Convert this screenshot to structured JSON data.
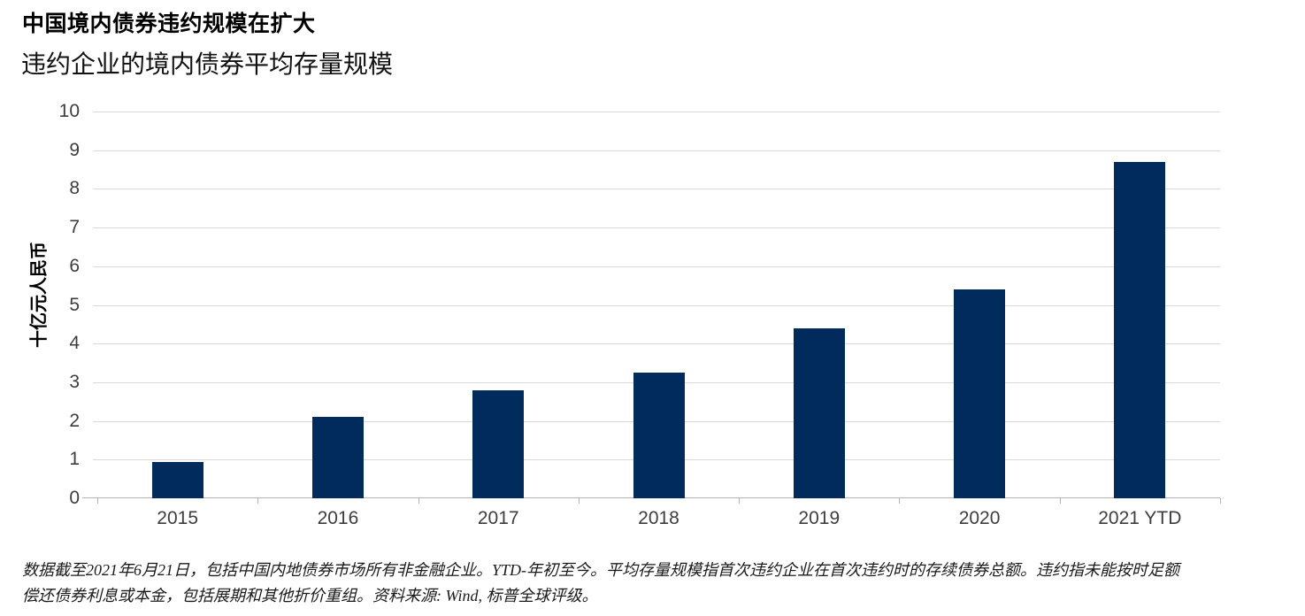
{
  "header": {
    "title": "中国境内债券违约规模在扩大",
    "subtitle": "违约企业的境内债券平均存量规模"
  },
  "chart_data": {
    "type": "bar",
    "title": "中国境内债券违约规模在扩大",
    "subtitle": "违约企业的境内债券平均存量规模",
    "categories": [
      "2015",
      "2016",
      "2017",
      "2018",
      "2019",
      "2020",
      "2021 YTD"
    ],
    "values": [
      0.95,
      2.1,
      2.8,
      3.25,
      4.4,
      5.4,
      8.7
    ],
    "xlabel": "",
    "ylabel": "十亿元人民币",
    "ylim": [
      0,
      10
    ],
    "ytick_step": 1,
    "yticks": [
      0,
      1,
      2,
      3,
      4,
      5,
      6,
      7,
      8,
      9,
      10
    ],
    "grid": true,
    "legend_position": "none",
    "bar_color": "#002b5c"
  },
  "colors": {
    "bar": "#002b5c",
    "gridline": "#d9d9d9",
    "axis": "#b3b3b3",
    "tick_text": "#3d3d3d"
  },
  "footnote": {
    "line1": "数据截至2021年6月21日，包括中国内地债券市场所有非金融企业。YTD-年初至今。平均存量规模指首次违约企业在首次违约时的存续债券总额。违约指未能按时足额",
    "line2": "偿还债券利息或本金，包括展期和其他折价重组。资料来源: Wind, 标普全球评级。"
  }
}
